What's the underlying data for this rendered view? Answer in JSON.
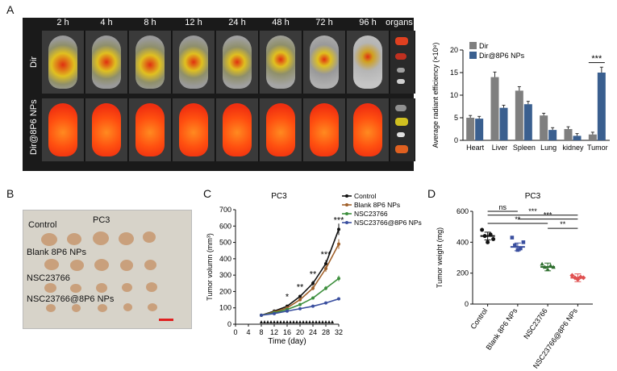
{
  "panels": {
    "a": "A",
    "b": "B",
    "c": "C",
    "d": "D"
  },
  "panel_a": {
    "time_labels": [
      "2 h",
      "4 h",
      "8 h",
      "12 h",
      "24 h",
      "48 h",
      "72 h",
      "96 h"
    ],
    "organs_label": "organs",
    "row_labels": [
      "Dir",
      "Dir@8P6 NPs"
    ]
  },
  "panel_b": {
    "title": "PC3",
    "row_labels": [
      "Control",
      "Blank 8P6 NPs",
      "NSC23766",
      "NSC23766@8P6 NPs"
    ],
    "colors": {
      "background": "#d7d3c9",
      "tumor": "#c9a07c",
      "scale_bar": "#e02020"
    }
  },
  "chart_data": [
    {
      "type": "bar",
      "panel": "A",
      "title": "",
      "ylabel": "Average radiant efficiency (×10⁸)",
      "xlabel": "",
      "categories": [
        "Heart",
        "Liver",
        "Spleen",
        "Lung",
        "kidney",
        "Tumor"
      ],
      "series": [
        {
          "name": "Dir",
          "color": "#7f7f7f",
          "values": [
            5,
            14,
            11,
            5.5,
            2.5,
            1.3
          ]
        },
        {
          "name": "Dir@8P6 NPs",
          "color": "#3a5f8f",
          "values": [
            4.8,
            7.2,
            8,
            2.3,
            1,
            15
          ]
        }
      ],
      "ylim": [
        0,
        20
      ],
      "yticks": [
        0,
        5,
        10,
        15,
        20
      ],
      "annotations": [
        {
          "category": "Tumor",
          "text": "***"
        }
      ],
      "legend": "top-left"
    },
    {
      "type": "line",
      "panel": "C",
      "title": "PC3",
      "xlabel": "Time (day)",
      "ylabel": "Tumor volumn (mm³)",
      "x": [
        8,
        12,
        16,
        20,
        24,
        28,
        32
      ],
      "xlim": [
        0,
        32
      ],
      "ylim": [
        0,
        700
      ],
      "xticks": [
        0,
        4,
        8,
        12,
        16,
        20,
        24,
        28,
        32
      ],
      "yticks": [
        0,
        100,
        200,
        300,
        400,
        500,
        600,
        700
      ],
      "series": [
        {
          "name": "Control",
          "color": "#111111",
          "values": [
            55,
            80,
            110,
            170,
            250,
            370,
            580
          ]
        },
        {
          "name": "Blank 8P6 NPs",
          "color": "#a0602a",
          "values": [
            55,
            75,
            100,
            150,
            220,
            340,
            490
          ]
        },
        {
          "name": "NSC23766",
          "color": "#3d8f3d",
          "values": [
            55,
            70,
            90,
            120,
            160,
            220,
            280
          ]
        },
        {
          "name": "NSC23766@8P6 NPs",
          "color": "#3a4f9f",
          "values": [
            55,
            65,
            80,
            95,
            110,
            130,
            155
          ]
        }
      ],
      "treatment_days": [
        8,
        9,
        10,
        11,
        12,
        13,
        14,
        15,
        16,
        17,
        18,
        19,
        20,
        21,
        22,
        23,
        24,
        25,
        26,
        27,
        28,
        29,
        30
      ],
      "annotations": [
        {
          "x": 16,
          "text": "*"
        },
        {
          "x": 20,
          "text": "**"
        },
        {
          "x": 24,
          "text": "**"
        },
        {
          "x": 28,
          "text": "***"
        },
        {
          "x": 32,
          "text": "***"
        }
      ],
      "legend": "top-right"
    },
    {
      "type": "scatter",
      "panel": "D",
      "title": "PC3",
      "ylabel": "Tumor weight (mg)",
      "categories": [
        "Control",
        "Blank 8P6 NPs",
        "NSC23766",
        "NSC23766@8P6 NPs"
      ],
      "colors": [
        "#111111",
        "#3a4f9f",
        "#2f6f2f",
        "#e05050"
      ],
      "means": [
        440,
        370,
        240,
        170
      ],
      "points": [
        [
          480,
          440,
          400,
          450,
          420
        ],
        [
          430,
          380,
          350,
          360,
          400
        ],
        [
          260,
          240,
          225,
          250,
          240
        ],
        [
          185,
          170,
          160,
          175,
          170
        ]
      ],
      "ylim": [
        0,
        600
      ],
      "yticks": [
        0,
        200,
        400,
        600
      ],
      "comparisons": [
        {
          "a": 0,
          "b": 1,
          "text": "ns"
        },
        {
          "a": 0,
          "b": 3,
          "text": "***"
        },
        {
          "a": 1,
          "b": 3,
          "text": "***"
        },
        {
          "a": 0,
          "b": 2,
          "text": "**"
        },
        {
          "a": 2,
          "b": 3,
          "text": "**"
        }
      ]
    }
  ]
}
